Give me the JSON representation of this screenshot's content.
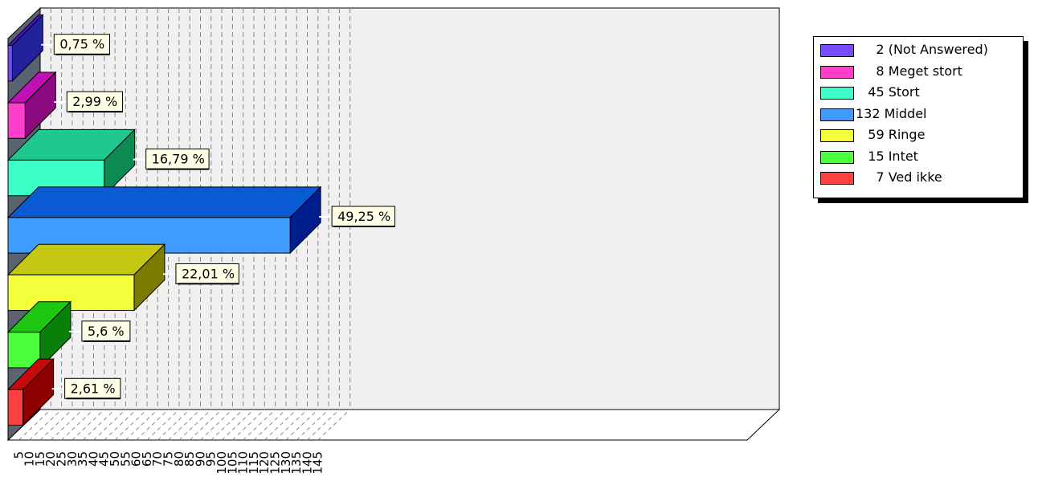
{
  "chart_data": {
    "type": "bar",
    "orientation": "horizontal",
    "style": "3d",
    "title": "",
    "xlabel": "",
    "ylabel": "",
    "xlim": [
      0,
      147
    ],
    "x_ticks": [
      "5",
      "10",
      "15",
      "20",
      "25",
      "30",
      "35",
      "40",
      "45",
      "50",
      "55",
      "60",
      "65",
      "70",
      "75",
      "80",
      "85",
      "90",
      "95",
      "100",
      "105",
      "110",
      "115",
      "120",
      "125",
      "130",
      "135",
      "140",
      "145"
    ],
    "grid": true,
    "legend_position": "right",
    "series": [
      {
        "name": "2 (Not Answered)",
        "value": 2,
        "label": "0,75 %",
        "color": "#7a4cff",
        "top": "#4b0cd8",
        "side": "#22229a"
      },
      {
        "name": "8 Meget stort",
        "value": 8,
        "label": "2,99 %",
        "color": "#ff3ecc",
        "top": "#c012b2",
        "side": "#8c0a80"
      },
      {
        "name": "45 Stort",
        "value": 45,
        "label": "16,79 %",
        "color": "#3cffc8",
        "top": "#1ec88e",
        "side": "#0c8a52"
      },
      {
        "name": "132 Middel",
        "value": 132,
        "label": "49,25 %",
        "color": "#3f9bff",
        "top": "#0a5ad4",
        "side": "#001f8c"
      },
      {
        "name": "59 Ringe",
        "value": 59,
        "label": "22,01 %",
        "color": "#f4ff3c",
        "top": "#c4c812",
        "side": "#7c7c00"
      },
      {
        "name": "15 Intet",
        "value": 15,
        "label": "5,6 %",
        "color": "#4cff3c",
        "top": "#1ec812",
        "side": "#0a800a"
      },
      {
        "name": "7 Ved ikke",
        "value": 7,
        "label": "2,61 %",
        "color": "#ff4040",
        "top": "#c80a0a",
        "side": "#8c0000"
      }
    ]
  },
  "legend": [
    {
      "text": "     2 (Not Answered)",
      "color": "#7a4cff"
    },
    {
      "text": "     8 Meget stort",
      "color": "#ff3ecc"
    },
    {
      "text": "   45 Stort",
      "color": "#3cffc8"
    },
    {
      "text": "132 Middel",
      "color": "#3f9bff"
    },
    {
      "text": "   59 Ringe",
      "color": "#f4ff3c"
    },
    {
      "text": "   15 Intet",
      "color": "#4cff3c"
    },
    {
      "text": "     7 Ved ikke",
      "color": "#ff4040"
    }
  ]
}
